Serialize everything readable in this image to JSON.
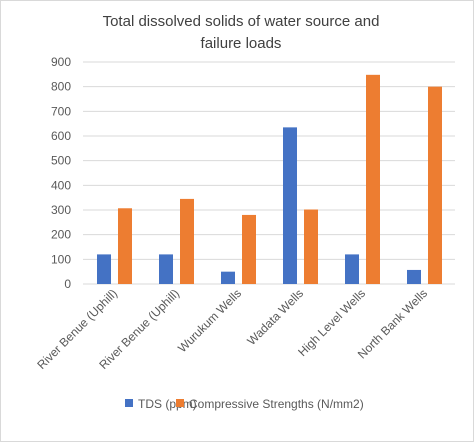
{
  "chart_data": {
    "type": "bar",
    "title_lines": [
      "Total dissolved solids of water source and",
      "failure loads"
    ],
    "categories": [
      "River Benue (Uphill)",
      "River Benue (Uphill)",
      "Wurukum Wells",
      "Wadata Wells",
      "High Level Wells",
      "North Bank Wells"
    ],
    "series": [
      {
        "name": "TDS (ppm)",
        "color": "#4472c4",
        "values": [
          120,
          120,
          50,
          635,
          120,
          57
        ]
      },
      {
        "name": "Compressive Strengths (N/mm2)",
        "color": "#ed7d31",
        "values": [
          307,
          345,
          280,
          302,
          848,
          800
        ]
      }
    ],
    "ylim": [
      0,
      900
    ],
    "yticks": [
      0,
      100,
      200,
      300,
      400,
      500,
      600,
      700,
      800,
      900
    ],
    "grid": true,
    "legend_position": "bottom"
  }
}
